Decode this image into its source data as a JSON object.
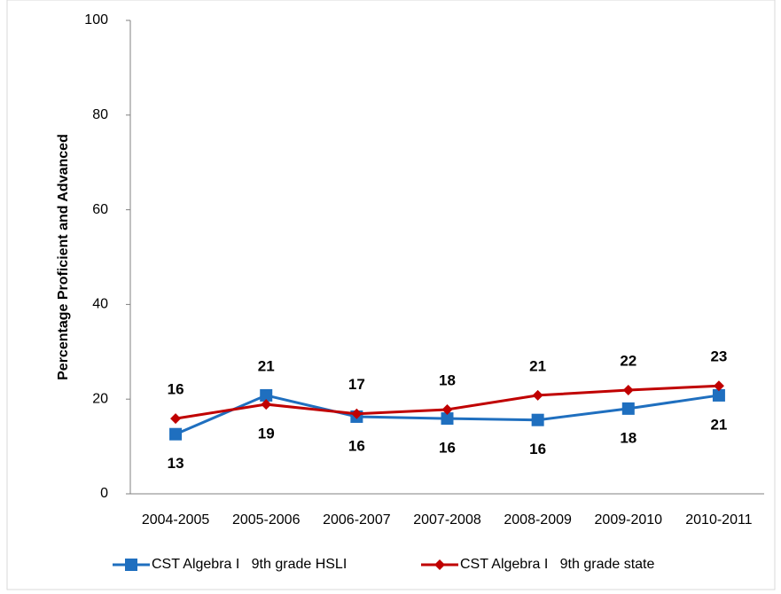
{
  "chart_data": {
    "type": "line",
    "y_label": "Percentage Proficient and Advanced",
    "categories": [
      "2004-2005",
      "2005-2006",
      "2006-2007",
      "2007-2008",
      "2008-2009",
      "2009-2010",
      "2010-2011"
    ],
    "series": [
      {
        "name": "CST Algebra I   9th grade HSLI",
        "color": "#1f6fbf",
        "marker": "square",
        "values": [
          12.6,
          20.8,
          16.3,
          15.9,
          15.6,
          18.0,
          20.8
        ],
        "value_labels": [
          "13",
          "21",
          "16",
          "16",
          "16",
          "18",
          "21"
        ]
      },
      {
        "name": "CST Algebra I   9th grade state",
        "color": "#c00000",
        "marker": "diamond",
        "values": [
          15.9,
          18.9,
          16.9,
          17.8,
          20.8,
          21.9,
          22.8
        ],
        "value_labels": [
          "16",
          "19",
          "17",
          "18",
          "21",
          "22",
          "23"
        ]
      }
    ],
    "ylim": [
      0,
      100
    ],
    "yticks": [
      0,
      20,
      40,
      60,
      80,
      100
    ],
    "grid": false
  }
}
